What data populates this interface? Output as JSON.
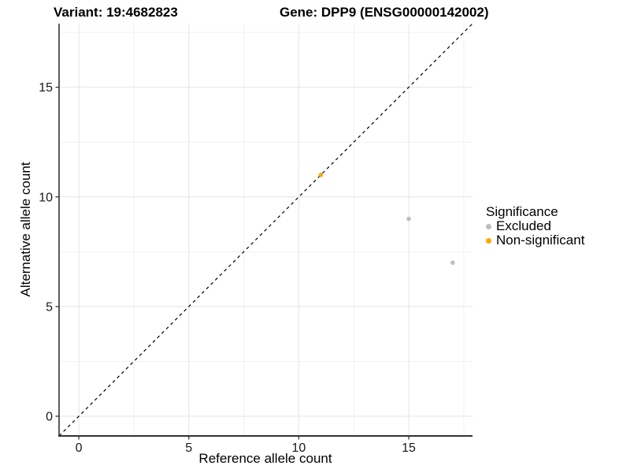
{
  "title": {
    "variant": "Variant: 19:4682823",
    "gene": "Gene: DPP9 (ENSG00000142002)"
  },
  "chart_data": {
    "type": "scatter",
    "xlabel": "Reference allele count",
    "ylabel": "Alternative allele count",
    "xlim": [
      -0.9,
      17.9
    ],
    "ylim": [
      -0.9,
      17.9
    ],
    "x_ticks": [
      0,
      5,
      10,
      15
    ],
    "y_ticks": [
      0,
      5,
      10,
      15
    ],
    "minor_ticks": [
      2.5,
      7.5,
      12.5,
      17.5
    ],
    "grid": true,
    "identity_line": {
      "style": "dashed",
      "color": "#000000"
    },
    "series": [
      {
        "name": "Excluded",
        "color": "#BEBEBE",
        "points": [
          [
            15,
            9
          ],
          [
            17,
            7
          ]
        ]
      },
      {
        "name": "Non-significant",
        "color": "#FFA500",
        "points": [
          [
            11,
            11
          ]
        ]
      }
    ],
    "legend": {
      "title": "Significance",
      "position": "right"
    },
    "colors": {
      "major_grid": "#E4E4E4",
      "minor_grid": "#F1F1F1",
      "axis_line": "#333333"
    }
  }
}
